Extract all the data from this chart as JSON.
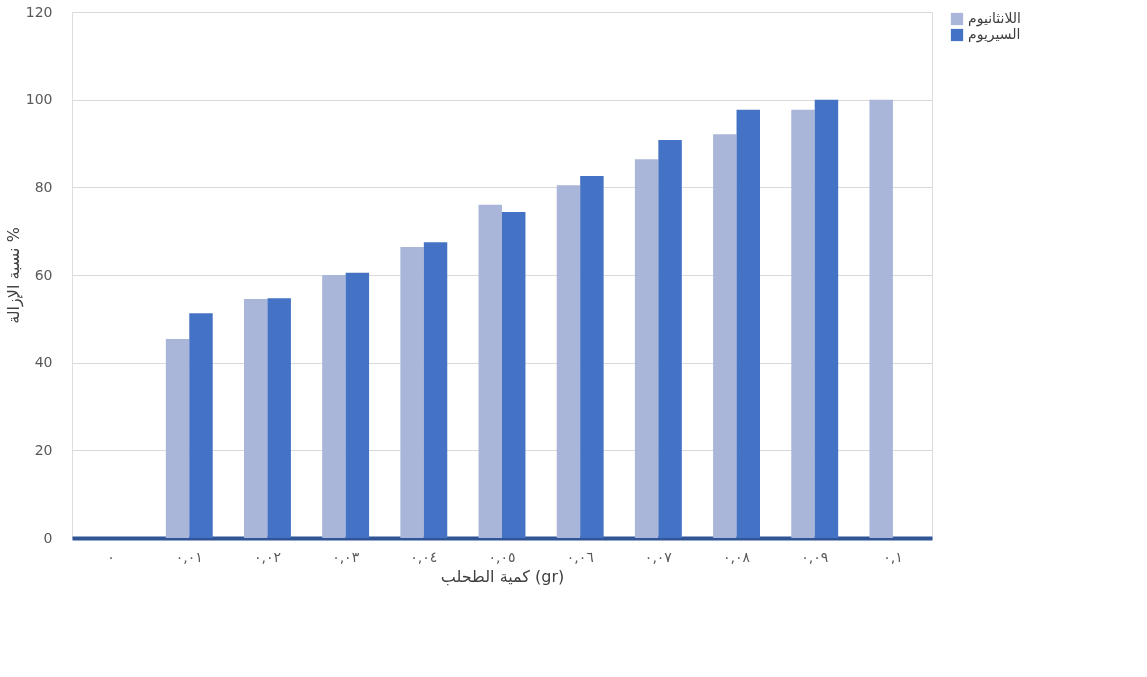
{
  "chart_data": {
    "type": "bar",
    "xlabel": "كمية الطحلب (gr)",
    "ylabel": "نسبة الإزالة %",
    "categories": [
      "٠",
      "٠,٠١",
      "٠,٠٢",
      "٠,٠٣",
      "٠,٠٤",
      "٠,٠٥",
      "٠,٠٦",
      "٠,٠٧",
      "٠,٠٨",
      "٠,٠٩",
      "٠,١"
    ],
    "series": [
      {
        "name": "اللانثانيوم",
        "color": "#a9b6da",
        "values": [
          0,
          45.4,
          54.5,
          60.0,
          66.4,
          76.0,
          80.5,
          86.4,
          92.1,
          97.7,
          100
        ]
      },
      {
        "name": "السيريوم",
        "color": "#4472c4",
        "values": [
          0,
          51.3,
          54.7,
          60.5,
          67.5,
          74.4,
          82.6,
          90.8,
          97.7,
          100,
          null
        ]
      }
    ],
    "ylim": [
      0,
      120
    ],
    "yticks": [
      0,
      20,
      40,
      60,
      80,
      100,
      120
    ],
    "grid": "y",
    "legend": "right"
  }
}
